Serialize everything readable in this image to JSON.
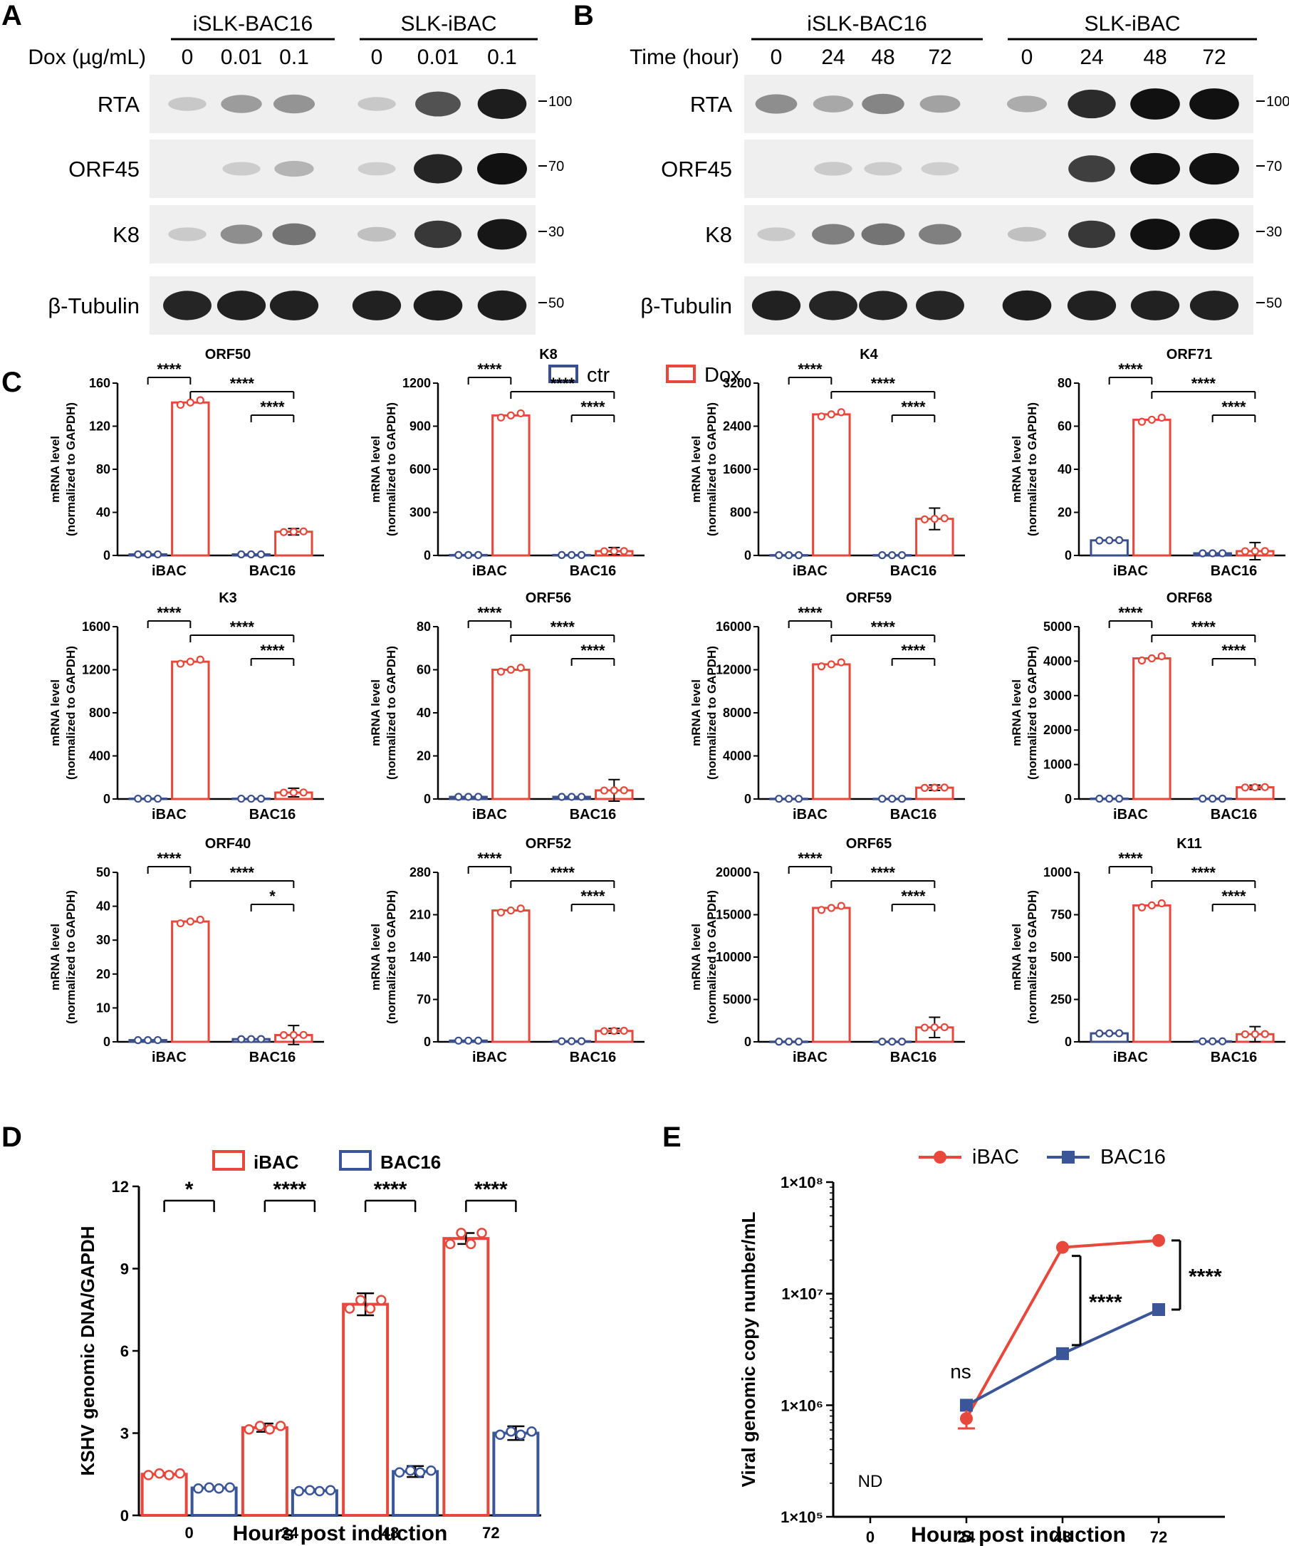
{
  "colors": {
    "ctr": "#3a4f8c",
    "dox": "#e8483b",
    "ibac": "#e8483b",
    "bac16": "#3a5598",
    "blot_bg": "#efefef",
    "band": "#111111"
  },
  "panel_a": {
    "letter": "A",
    "groups": [
      "iSLK-BAC16",
      "SLK-iBAC"
    ],
    "condition_label": "Dox (µg/mL)",
    "lanes": [
      "0",
      "0.01",
      "0.1",
      "0",
      "0.01",
      "0.1"
    ],
    "blots": [
      {
        "name": "RTA",
        "marker": "100",
        "intensities": [
          0.06,
          0.28,
          0.32,
          0.06,
          0.65,
          0.92
        ]
      },
      {
        "name": "ORF45",
        "marker": "70",
        "intensities": [
          0.0,
          0.04,
          0.16,
          0.03,
          0.88,
          1.0
        ]
      },
      {
        "name": "K8",
        "marker": "30",
        "intensities": [
          0.05,
          0.35,
          0.48,
          0.1,
          0.78,
          0.95
        ]
      },
      {
        "name": "β-Tubulin",
        "marker": "50",
        "intensities": [
          0.88,
          0.9,
          0.9,
          0.9,
          0.92,
          0.92
        ]
      }
    ]
  },
  "panel_b": {
    "letter": "B",
    "groups": [
      "iSLK-BAC16",
      "SLK-iBAC"
    ],
    "condition_label": "Time (hour)",
    "lanes": [
      "0",
      "24",
      "48",
      "72",
      "0",
      "24",
      "48",
      "72"
    ],
    "blots": [
      {
        "name": "RTA",
        "marker": "100",
        "intensities": [
          0.35,
          0.22,
          0.4,
          0.25,
          0.2,
          0.85,
          0.98,
          0.98
        ]
      },
      {
        "name": "ORF45",
        "marker": "70",
        "intensities": [
          0.0,
          0.05,
          0.04,
          0.03,
          0.0,
          0.75,
          1.0,
          1.0
        ]
      },
      {
        "name": "K8",
        "marker": "30",
        "intensities": [
          0.05,
          0.42,
          0.48,
          0.42,
          0.1,
          0.78,
          0.98,
          0.98
        ]
      },
      {
        "name": "β-Tubulin",
        "marker": "50",
        "intensities": [
          0.9,
          0.88,
          0.88,
          0.88,
          0.92,
          0.9,
          0.9,
          0.9
        ]
      }
    ]
  },
  "panel_c": {
    "letter": "C",
    "legend": [
      {
        "label": "ctr",
        "color": "#3a4f8c"
      },
      {
        "label": "Dox",
        "color": "#e8483b"
      }
    ],
    "ylabel_line1": "mRNA level",
    "ylabel_line2": "(normalized to GAPDH)"
  },
  "panel_d": {
    "letter": "D"
  },
  "panel_e": {
    "letter": "E"
  },
  "chart_data": [
    {
      "type": "bar",
      "title": "ORF50",
      "categories": [
        "iBAC",
        "BAC16"
      ],
      "ylabel": "mRNA level (normalized to GAPDH)",
      "ylim": [
        0,
        160
      ],
      "yticks": [
        0,
        40,
        80,
        120,
        160
      ],
      "series": [
        {
          "name": "ctr",
          "values": [
            1,
            1
          ]
        },
        {
          "name": "Dox",
          "values": [
            142,
            22
          ]
        }
      ],
      "errors": [
        0,
        3
      ],
      "significance": [
        "****",
        "****",
        "****"
      ]
    },
    {
      "type": "bar",
      "title": "K8",
      "categories": [
        "iBAC",
        "BAC16"
      ],
      "ylabel": "mRNA level (normalized to GAPDH)",
      "ylim": [
        0,
        1200
      ],
      "yticks": [
        0,
        300,
        600,
        900,
        1200
      ],
      "series": [
        {
          "name": "ctr",
          "values": [
            3,
            3
          ]
        },
        {
          "name": "Dox",
          "values": [
            975,
            30
          ]
        }
      ],
      "errors": [
        0,
        25
      ],
      "significance": [
        "****",
        "****",
        "****"
      ]
    },
    {
      "type": "bar",
      "title": "K4",
      "categories": [
        "iBAC",
        "BAC16"
      ],
      "ylabel": "mRNA level (normalized to GAPDH)",
      "ylim": [
        0,
        3200
      ],
      "yticks": [
        0,
        800,
        1600,
        2400,
        3200
      ],
      "series": [
        {
          "name": "ctr",
          "values": [
            5,
            5
          ]
        },
        {
          "name": "Dox",
          "values": [
            2620,
            680
          ]
        }
      ],
      "errors": [
        0,
        200
      ],
      "significance": [
        "****",
        "****",
        "****"
      ]
    },
    {
      "type": "bar",
      "title": "ORF71",
      "categories": [
        "iBAC",
        "BAC16"
      ],
      "ylabel": "mRNA level (normalized to GAPDH)",
      "ylim": [
        0,
        80
      ],
      "yticks": [
        0,
        20,
        40,
        60,
        80
      ],
      "series": [
        {
          "name": "ctr",
          "values": [
            7,
            1
          ]
        },
        {
          "name": "Dox",
          "values": [
            63,
            2
          ]
        }
      ],
      "errors": [
        0,
        4
      ],
      "significance": [
        "****",
        "****",
        "****"
      ]
    },
    {
      "type": "bar",
      "title": "K3",
      "categories": [
        "iBAC",
        "BAC16"
      ],
      "ylabel": "mRNA level (normalized to GAPDH)",
      "ylim": [
        0,
        1600
      ],
      "yticks": [
        0,
        400,
        800,
        1200,
        1600
      ],
      "series": [
        {
          "name": "ctr",
          "values": [
            3,
            3
          ]
        },
        {
          "name": "Dox",
          "values": [
            1275,
            60
          ]
        }
      ],
      "errors": [
        0,
        40
      ],
      "significance": [
        "****",
        "****",
        "****"
      ]
    },
    {
      "type": "bar",
      "title": "ORF56",
      "categories": [
        "iBAC",
        "BAC16"
      ],
      "ylabel": "mRNA level (normalized to GAPDH)",
      "ylim": [
        0,
        80
      ],
      "yticks": [
        0,
        20,
        40,
        60,
        80
      ],
      "series": [
        {
          "name": "ctr",
          "values": [
            1,
            1
          ]
        },
        {
          "name": "Dox",
          "values": [
            60,
            4
          ]
        }
      ],
      "errors": [
        0,
        5
      ],
      "significance": [
        "****",
        "****",
        "****"
      ]
    },
    {
      "type": "bar",
      "title": "ORF59",
      "categories": [
        "iBAC",
        "BAC16"
      ],
      "ylabel": "mRNA level (normalized to GAPDH)",
      "ylim": [
        0,
        16000
      ],
      "yticks": [
        0,
        4000,
        8000,
        12000,
        16000
      ],
      "series": [
        {
          "name": "ctr",
          "values": [
            20,
            20
          ]
        },
        {
          "name": "Dox",
          "values": [
            12500,
            1050
          ]
        }
      ],
      "errors": [
        0,
        250
      ],
      "significance": [
        "****",
        "****",
        "****"
      ]
    },
    {
      "type": "bar",
      "title": "ORF68",
      "categories": [
        "iBAC",
        "BAC16"
      ],
      "ylabel": "mRNA level (normalized to GAPDH)",
      "ylim": [
        0,
        5000
      ],
      "yticks": [
        0,
        1000,
        2000,
        3000,
        4000,
        5000
      ],
      "series": [
        {
          "name": "ctr",
          "values": [
            10,
            10
          ]
        },
        {
          "name": "Dox",
          "values": [
            4080,
            340
          ]
        }
      ],
      "errors": [
        0,
        60
      ],
      "significance": [
        "****",
        "****",
        "****"
      ]
    },
    {
      "type": "bar",
      "title": "ORF40",
      "categories": [
        "iBAC",
        "BAC16"
      ],
      "ylabel": "mRNA level (normalized to GAPDH)",
      "ylim": [
        0,
        50
      ],
      "yticks": [
        0,
        10,
        20,
        30,
        40,
        50
      ],
      "series": [
        {
          "name": "ctr",
          "values": [
            0.5,
            0.8
          ]
        },
        {
          "name": "Dox",
          "values": [
            35.5,
            2
          ]
        }
      ],
      "errors": [
        0,
        2.8
      ],
      "significance": [
        "****",
        "****",
        "*"
      ]
    },
    {
      "type": "bar",
      "title": "ORF52",
      "categories": [
        "iBAC",
        "BAC16"
      ],
      "ylabel": "mRNA level (normalized to GAPDH)",
      "ylim": [
        0,
        280
      ],
      "yticks": [
        0,
        70,
        140,
        210,
        280
      ],
      "series": [
        {
          "name": "ctr",
          "values": [
            2,
            1
          ]
        },
        {
          "name": "Dox",
          "values": [
            217,
            18
          ]
        }
      ],
      "errors": [
        0,
        4
      ],
      "significance": [
        "****",
        "****",
        "****"
      ]
    },
    {
      "type": "bar",
      "title": "ORF65",
      "categories": [
        "iBAC",
        "BAC16"
      ],
      "ylabel": "mRNA level (normalized to GAPDH)",
      "ylim": [
        0,
        20000
      ],
      "yticks": [
        0,
        5000,
        10000,
        15000,
        20000
      ],
      "series": [
        {
          "name": "ctr",
          "values": [
            20,
            20
          ]
        },
        {
          "name": "Dox",
          "values": [
            15800,
            1700
          ]
        }
      ],
      "errors": [
        0,
        1200
      ],
      "significance": [
        "****",
        "****",
        "****"
      ]
    },
    {
      "type": "bar",
      "title": "K11",
      "categories": [
        "iBAC",
        "BAC16"
      ],
      "ylabel": "mRNA level (normalized to GAPDH)",
      "ylim": [
        0,
        1000
      ],
      "yticks": [
        0,
        250,
        500,
        750,
        1000
      ],
      "series": [
        {
          "name": "ctr",
          "values": [
            50,
            3
          ]
        },
        {
          "name": "Dox",
          "values": [
            805,
            45
          ]
        }
      ],
      "errors": [
        0,
        45
      ],
      "significance": [
        "****",
        "****",
        "****"
      ]
    },
    {
      "type": "bar",
      "title": "",
      "categories": [
        "0",
        "24",
        "48",
        "72"
      ],
      "xlabel": "Hours post induction",
      "ylabel": "KSHV genomic DNA/GAPDH",
      "ylim": [
        0,
        12
      ],
      "yticks": [
        0,
        3,
        6,
        9,
        12
      ],
      "series": [
        {
          "name": "iBAC",
          "values": [
            1.5,
            3.2,
            7.7,
            10.1
          ]
        },
        {
          "name": "BAC16",
          "values": [
            1.0,
            0.9,
            1.6,
            3.0
          ]
        }
      ],
      "errors_ibac": [
        0.05,
        0.15,
        0.4,
        0.2
      ],
      "errors_bac16": [
        0.03,
        0.05,
        0.2,
        0.25
      ],
      "significance": [
        "*",
        "****",
        "****",
        "****"
      ]
    },
    {
      "type": "line",
      "title": "",
      "x": [
        "0",
        "24",
        "48",
        "72"
      ],
      "xlabel": "Hours post induction",
      "ylabel": "Viral genomic copy number/mL",
      "yscale": "log",
      "ylim": [
        100000,
        100000000
      ],
      "yticks": [
        "1×10⁵",
        "1×10⁶",
        "1×10⁷",
        "1×10⁸"
      ],
      "series": [
        {
          "name": "iBAC",
          "values": [
            null,
            760000,
            26000000,
            30000000
          ]
        },
        {
          "name": "BAC16",
          "values": [
            null,
            1000000,
            2900000,
            7200000
          ]
        }
      ],
      "annotations": [
        "ND",
        "ns",
        "****",
        "****"
      ]
    }
  ]
}
